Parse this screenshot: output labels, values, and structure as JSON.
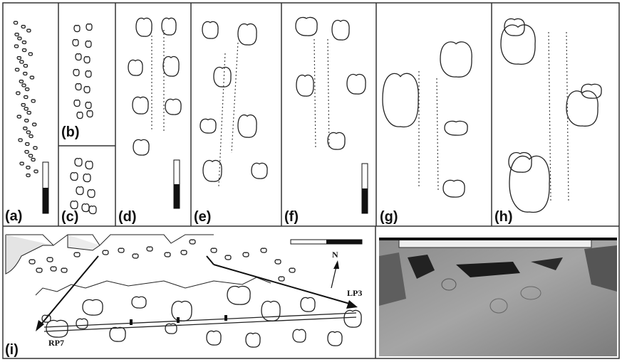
{
  "panels": [
    {
      "label": "(a)"
    },
    {
      "label": "(b)"
    },
    {
      "label": "(c)"
    },
    {
      "label": "(d)"
    },
    {
      "label": "(e)"
    },
    {
      "label": "(f)"
    },
    {
      "label": "(g)"
    },
    {
      "label": "(h)"
    },
    {
      "label": "(i)"
    }
  ],
  "annotations": {
    "north": "N",
    "lp3": "LP3",
    "rp7": "RP7"
  }
}
